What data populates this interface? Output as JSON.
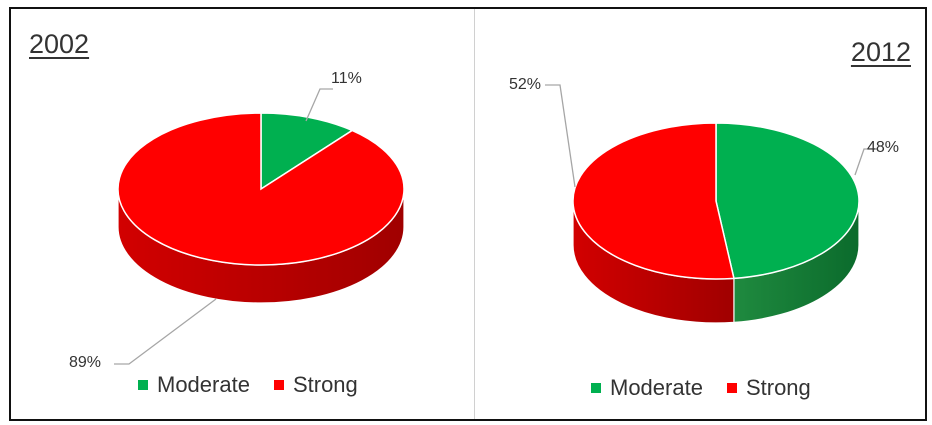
{
  "colors": {
    "moderate": "#00b050",
    "strong": "#ff0000",
    "moderate_side": "#0b6b2c",
    "strong_side": "#a00000"
  },
  "chart_data": [
    {
      "type": "pie",
      "title": "2002",
      "categories": [
        "Moderate",
        "Strong"
      ],
      "values": [
        11,
        89
      ],
      "data_labels": [
        "11%",
        "89%"
      ],
      "legend": {
        "position": "bottom",
        "entries": [
          "Moderate",
          "Strong"
        ]
      }
    },
    {
      "type": "pie",
      "title": "2012",
      "categories": [
        "Moderate",
        "Strong"
      ],
      "values": [
        48,
        52
      ],
      "data_labels": [
        "48%",
        "52%"
      ],
      "legend": {
        "position": "bottom",
        "entries": [
          "Moderate",
          "Strong"
        ]
      }
    }
  ]
}
